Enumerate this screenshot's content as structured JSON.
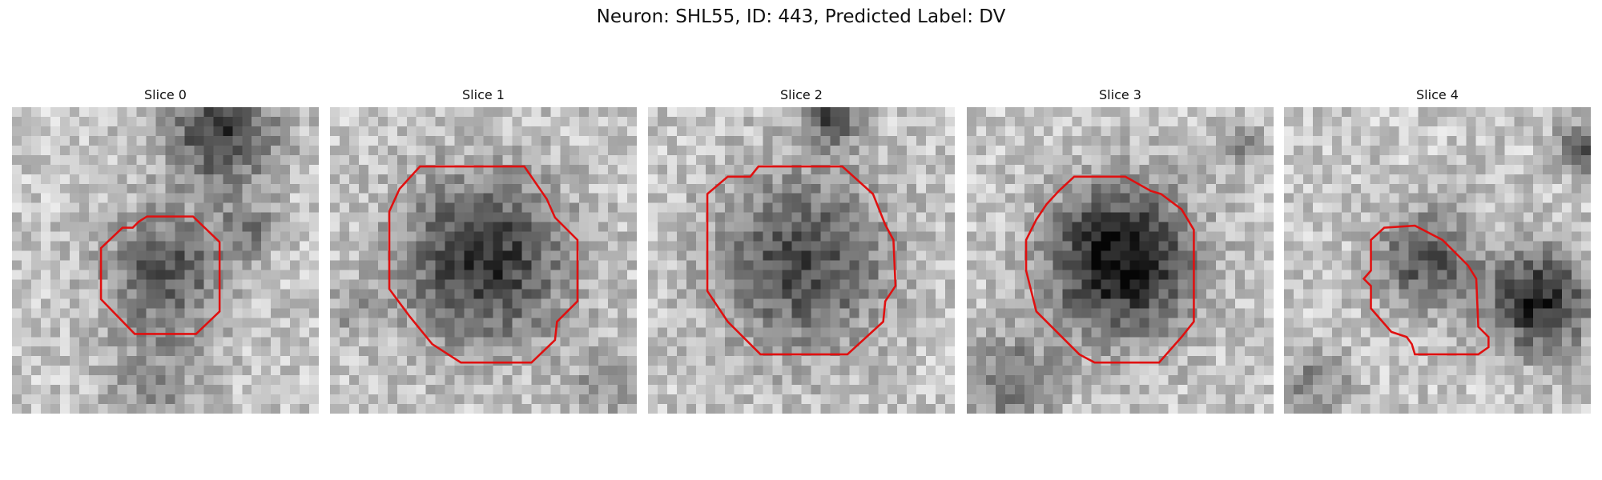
{
  "title": "Neuron: SHL55, ID: 443, Predicted Label: DV",
  "panels": [
    {
      "label": "Slice 0"
    },
    {
      "label": "Slice 1"
    },
    {
      "label": "Slice 2"
    },
    {
      "label": "Slice 3"
    },
    {
      "label": "Slice 4"
    }
  ]
}
